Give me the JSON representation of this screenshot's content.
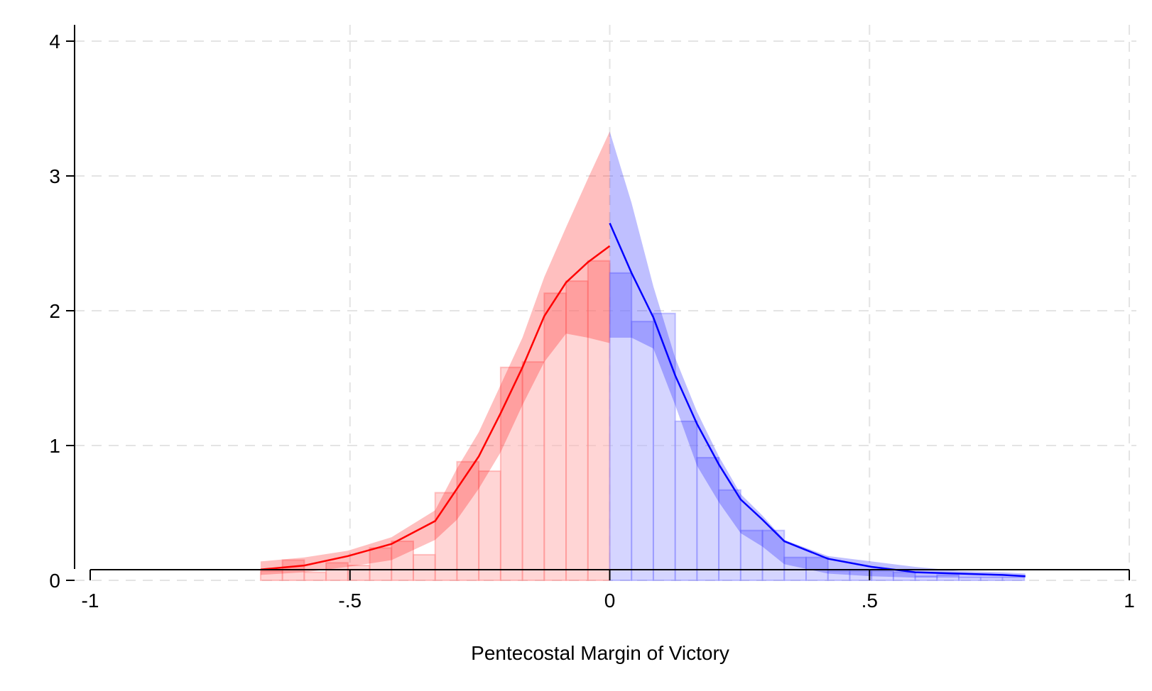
{
  "chart_data": {
    "type": "bar",
    "title": "",
    "xlabel": "Pentecostal Margin of Victory",
    "ylabel": "",
    "xlim": [
      -1,
      1
    ],
    "ylim": [
      0,
      4
    ],
    "xticks": [
      -1,
      -0.5,
      0,
      0.5,
      1
    ],
    "xtick_labels": [
      "-1",
      "-.5",
      "0",
      ".5",
      "1"
    ],
    "yticks": [
      0,
      1,
      2,
      3,
      4
    ],
    "ytick_labels": [
      "0",
      "1",
      "2",
      "3",
      "4"
    ],
    "grid": true,
    "colors": {
      "left": "#ff0000",
      "right": "#0000ff",
      "left_fill": "#ffb3b3",
      "right_fill": "#b3b3ff"
    },
    "bin_width": 0.042,
    "left_bins": {
      "left_edges": [
        -0.672,
        -0.63,
        -0.588,
        -0.546,
        -0.504,
        -0.462,
        -0.42,
        -0.378,
        -0.336,
        -0.294,
        -0.252,
        -0.21,
        -0.168,
        -0.126,
        -0.084,
        -0.042
      ],
      "values": [
        0.07,
        0.15,
        0.06,
        0.13,
        0.11,
        0.24,
        0.29,
        0.19,
        0.65,
        0.88,
        0.81,
        1.58,
        1.62,
        2.13,
        2.22,
        2.37
      ]
    },
    "right_bins": {
      "left_edges": [
        0.0,
        0.042,
        0.084,
        0.126,
        0.168,
        0.21,
        0.252,
        0.294,
        0.336,
        0.378,
        0.42,
        0.462,
        0.504,
        0.546,
        0.588,
        0.63,
        0.672,
        0.714,
        0.756
      ],
      "values": [
        2.28,
        1.92,
        1.98,
        1.18,
        0.91,
        0.67,
        0.37,
        0.37,
        0.17,
        0.17,
        0.07,
        0.07,
        0.07,
        0.06,
        0.03,
        0.04,
        0.02,
        0.02,
        0.02
      ]
    },
    "series": [
      {
        "side": "left",
        "x": [
          -0.672,
          -0.588,
          -0.504,
          -0.42,
          -0.336,
          -0.294,
          -0.252,
          -0.21,
          -0.168,
          -0.126,
          -0.084,
          -0.042,
          0.0
        ],
        "y": [
          0.08,
          0.11,
          0.18,
          0.27,
          0.44,
          0.68,
          0.92,
          1.24,
          1.58,
          1.96,
          2.21,
          2.36,
          2.48
        ],
        "ci_low": [
          0.04,
          0.06,
          0.1,
          0.15,
          0.3,
          0.45,
          0.68,
          0.95,
          1.3,
          1.62,
          1.83,
          1.8,
          1.76
        ],
        "ci_high": [
          0.14,
          0.17,
          0.22,
          0.32,
          0.52,
          0.83,
          1.1,
          1.45,
          1.8,
          2.25,
          2.62,
          2.98,
          3.33
        ]
      },
      {
        "side": "right",
        "x": [
          0.0,
          0.042,
          0.084,
          0.126,
          0.168,
          0.21,
          0.252,
          0.294,
          0.336,
          0.42,
          0.504,
          0.588,
          0.672,
          0.756,
          0.8
        ],
        "y": [
          2.65,
          2.28,
          1.95,
          1.52,
          1.16,
          0.86,
          0.6,
          0.45,
          0.29,
          0.16,
          0.1,
          0.06,
          0.05,
          0.04,
          0.03
        ],
        "ci_low": [
          1.8,
          1.8,
          1.72,
          1.3,
          0.85,
          0.58,
          0.35,
          0.25,
          0.12,
          0.05,
          0.03,
          0.02,
          0.02,
          0.02,
          0.02
        ],
        "ci_high": [
          3.33,
          2.8,
          2.18,
          1.65,
          1.25,
          0.92,
          0.64,
          0.48,
          0.3,
          0.18,
          0.14,
          0.1,
          0.07,
          0.06,
          0.05
        ]
      }
    ]
  }
}
